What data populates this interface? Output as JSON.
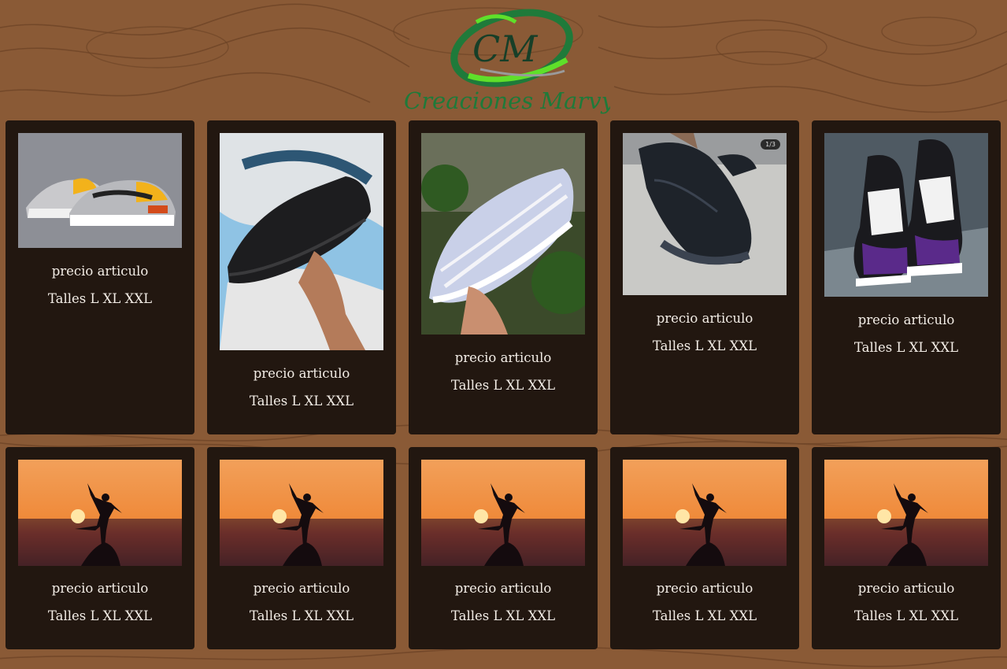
{
  "brand": {
    "monogram": "CM",
    "name": "Creaciones Marvy"
  },
  "products": [
    {
      "price_label": "precio articulo",
      "sizes_label": "Talles L XL XXL",
      "image": "gray-yellow-sneakers"
    },
    {
      "price_label": "precio articulo",
      "sizes_label": "Talles L XL XXL",
      "image": "black-sneaker-in-hand"
    },
    {
      "price_label": "precio articulo",
      "sizes_label": "Talles L XL XXL",
      "image": "silver-sneaker-in-hand"
    },
    {
      "price_label": "precio articulo",
      "sizes_label": "Talles L XL XXL",
      "image": "black-sneaker-on-foot",
      "badge": "1/3"
    },
    {
      "price_label": "precio articulo",
      "sizes_label": "Talles L XL XXL",
      "image": "purple-high-tops"
    },
    {
      "price_label": "precio articulo",
      "sizes_label": "Talles L XL XXL",
      "image": "sunset-silhouette"
    },
    {
      "price_label": "precio articulo",
      "sizes_label": "Talles L XL XXL",
      "image": "sunset-silhouette"
    },
    {
      "price_label": "precio articulo",
      "sizes_label": "Talles L XL XXL",
      "image": "sunset-silhouette"
    },
    {
      "price_label": "precio articulo",
      "sizes_label": "Talles L XL XXL",
      "image": "sunset-silhouette"
    },
    {
      "price_label": "precio articulo",
      "sizes_label": "Talles L XL XXL",
      "image": "sunset-silhouette"
    }
  ],
  "colors": {
    "background": "#8a5a36",
    "card": "#221710",
    "text": "#f3ede6",
    "logo_green": "#1f7a3a",
    "logo_lime": "#5fe02a"
  }
}
